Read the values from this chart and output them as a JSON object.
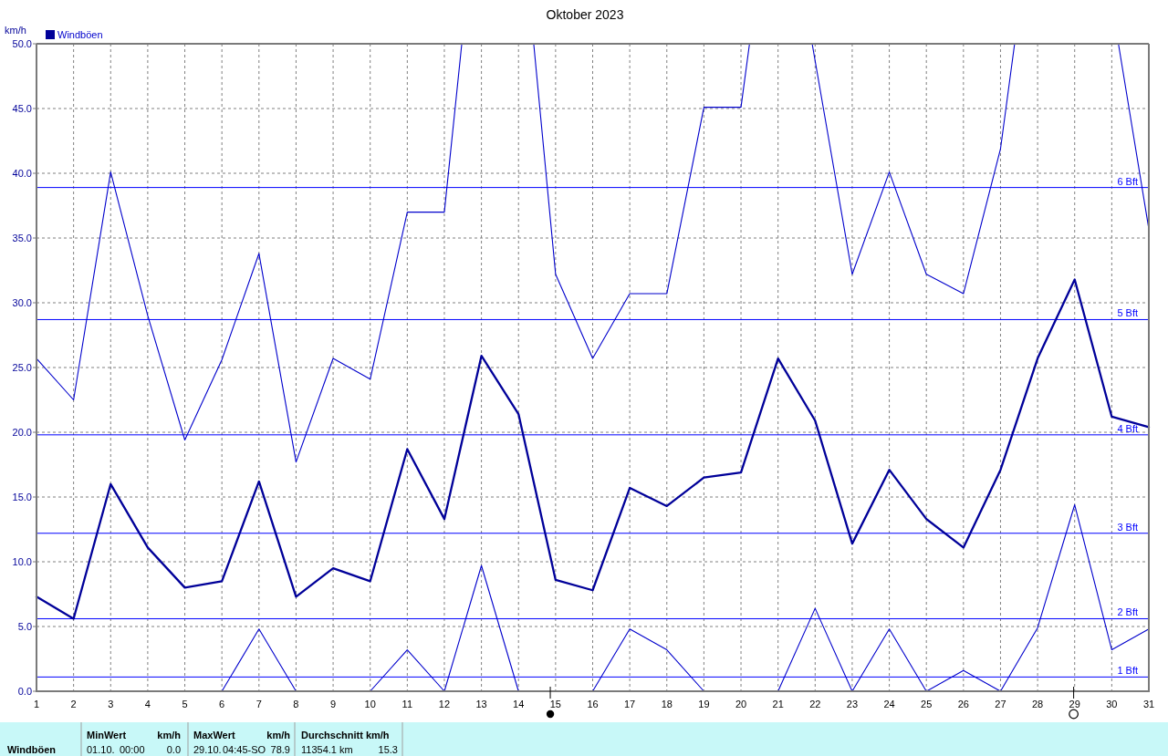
{
  "chart_data": {
    "type": "line",
    "title": "Oktober 2023",
    "ylabel": "km/h",
    "x": [
      1,
      2,
      3,
      4,
      5,
      6,
      7,
      8,
      9,
      10,
      11,
      12,
      13,
      14,
      15,
      16,
      17,
      18,
      19,
      20,
      21,
      22,
      23,
      24,
      25,
      26,
      27,
      28,
      29,
      30,
      31
    ],
    "series": [
      {
        "color": "#0000cc",
        "x": [
          1,
          2,
          3,
          4,
          5,
          6,
          7,
          8,
          9,
          10,
          11,
          12,
          12.47,
          13,
          14.41,
          15,
          16,
          17,
          18,
          19,
          20,
          20.23,
          21,
          21.92,
          23,
          24,
          25,
          26,
          27,
          27.38,
          29,
          30.18,
          31
        ],
        "values": [
          25.7,
          22.5,
          40.1,
          29.0,
          19.4,
          25.6,
          33.8,
          17.7,
          25.7,
          24.1,
          37.0,
          37.0,
          50,
          null,
          50,
          32.2,
          25.7,
          30.7,
          30.7,
          45.1,
          45.1,
          50,
          null,
          50,
          32.2,
          40.1,
          32.2,
          30.7,
          41.9,
          50,
          null,
          50,
          35.7
        ]
      },
      {
        "name": "Windböen",
        "color": "#000099",
        "values": [
          7.3,
          5.6,
          16.0,
          11.1,
          8.0,
          8.5,
          16.2,
          7.3,
          9.5,
          8.5,
          18.7,
          13.3,
          25.9,
          21.4,
          8.6,
          7.8,
          15.7,
          14.3,
          16.5,
          16.9,
          25.7,
          20.9,
          11.4,
          17.1,
          13.3,
          11.1,
          17.1,
          25.7,
          31.8,
          21.2,
          20.4
        ]
      },
      {
        "color": "#0000cc",
        "values": [
          null,
          null,
          null,
          null,
          null,
          0,
          4.8,
          0,
          null,
          0,
          3.2,
          0,
          9.7,
          0,
          null,
          0,
          4.8,
          3.2,
          0,
          null,
          0,
          6.4,
          0,
          4.8,
          0,
          1.6,
          0,
          4.9,
          14.4,
          3.2,
          4.8
        ]
      }
    ],
    "xlim": [
      1,
      31
    ],
    "xticks": [
      1,
      2,
      3,
      4,
      5,
      6,
      7,
      8,
      9,
      10,
      11,
      12,
      13,
      14,
      15,
      16,
      17,
      18,
      19,
      20,
      21,
      22,
      23,
      24,
      25,
      26,
      27,
      28,
      29,
      30,
      31
    ],
    "ylim": [
      0,
      50
    ],
    "yticks": [
      {
        "value": 0,
        "label": "0.0"
      },
      {
        "value": 5,
        "label": "5.0"
      },
      {
        "value": 10,
        "label": "10.0"
      },
      {
        "value": 15,
        "label": "15.0"
      },
      {
        "value": 20,
        "label": "20.0"
      },
      {
        "value": 25,
        "label": "25.0"
      },
      {
        "value": 30,
        "label": "30.0"
      },
      {
        "value": 35,
        "label": "35.0"
      },
      {
        "value": 40,
        "label": "40.0"
      },
      {
        "value": 45,
        "label": "45.0"
      },
      {
        "value": 50,
        "label": "50.0"
      }
    ],
    "grid": true,
    "legend": "top left",
    "ref_lines": [
      {
        "axis": "y",
        "value": 1.1,
        "label": "1 Bft",
        "color": "#0000ff"
      },
      {
        "axis": "y",
        "value": 5.6,
        "label": "2 Bft",
        "color": "#0000ff"
      },
      {
        "axis": "y",
        "value": 12.2,
        "label": "3 Bft",
        "color": "#0000ff"
      },
      {
        "axis": "y",
        "value": 19.8,
        "label": "4 Bft",
        "color": "#0000ff"
      },
      {
        "axis": "y",
        "value": 28.7,
        "label": "5 Bft",
        "color": "#0000ff"
      },
      {
        "axis": "y",
        "value": 38.9,
        "label": "6 Bft",
        "color": "#0000ff"
      }
    ],
    "annotations": [
      "Windböen",
      "MinWert",
      "km/h",
      "01.10.",
      "00:00",
      "0.0",
      "MaxWert",
      "km/h",
      "29.10.",
      "04:45-SO",
      "78.9",
      "Durchschnitt km/h",
      "11354.1 km",
      "15.3"
    ]
  }
}
